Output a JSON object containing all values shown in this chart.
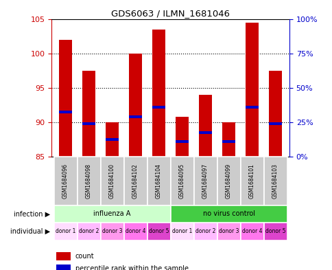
{
  "title": "GDS6063 / ILMN_1681046",
  "samples": [
    "GSM1684096",
    "GSM1684098",
    "GSM1684100",
    "GSM1684102",
    "GSM1684104",
    "GSM1684095",
    "GSM1684097",
    "GSM1684099",
    "GSM1684101",
    "GSM1684103"
  ],
  "bar_tops": [
    102.0,
    97.5,
    90.0,
    100.0,
    103.5,
    90.8,
    94.0,
    90.0,
    104.5,
    97.5
  ],
  "bar_bottom": 85,
  "blue_markers": [
    91.5,
    89.8,
    87.5,
    90.8,
    92.2,
    87.2,
    88.5,
    87.2,
    92.2,
    89.8
  ],
  "ylim_left": [
    85,
    105
  ],
  "ylim_right": [
    0,
    100
  ],
  "yticks_left": [
    85,
    90,
    95,
    100,
    105
  ],
  "yticks_right": [
    0,
    25,
    50,
    75,
    100
  ],
  "ytick_labels_right": [
    "0%",
    "25%",
    "50%",
    "75%",
    "100%"
  ],
  "bar_color": "#cc0000",
  "blue_color": "#0000cc",
  "infection_groups": [
    {
      "label": "influenza A",
      "start": 0,
      "end": 5,
      "color": "#ccffcc"
    },
    {
      "label": "no virus control",
      "start": 5,
      "end": 10,
      "color": "#44cc44"
    }
  ],
  "individual_labels": [
    "donor 1",
    "donor 2",
    "donor 3",
    "donor 4",
    "donor 5",
    "donor 1",
    "donor 2",
    "donor 3",
    "donor 4",
    "donor 5"
  ],
  "ind_colors": [
    "#ffddff",
    "#ffbbff",
    "#ff99ee",
    "#ff77ee",
    "#dd44cc",
    "#ffddff",
    "#ffbbff",
    "#ff99ee",
    "#ff77ee",
    "#dd44cc"
  ],
  "sample_bg_color": "#cccccc",
  "legend_count_color": "#cc0000",
  "legend_percentile_color": "#0000cc",
  "infection_label": "infection",
  "individual_label": "individual"
}
